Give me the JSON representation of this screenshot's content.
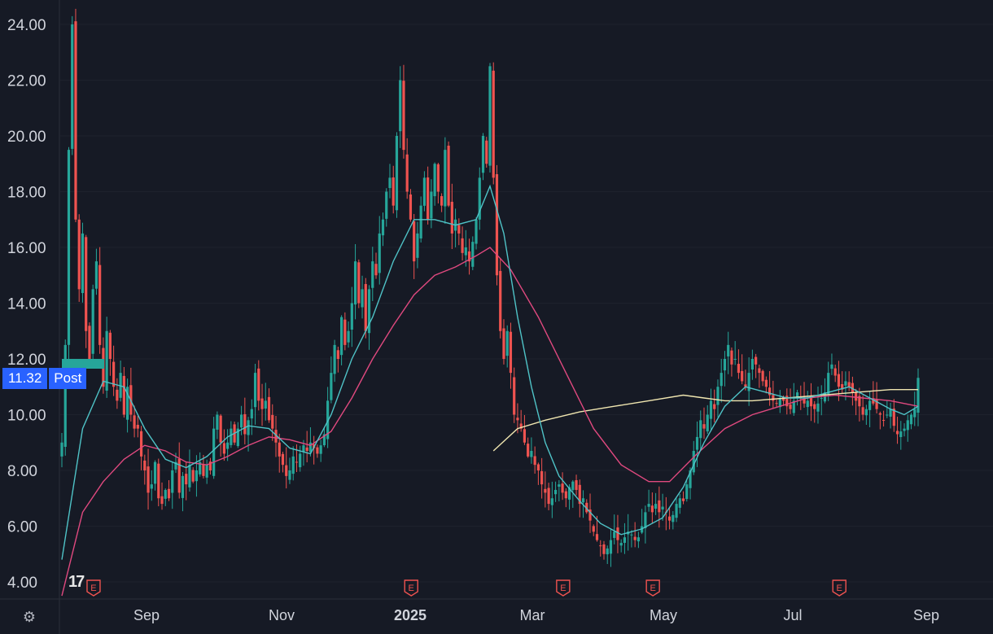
{
  "chart_data": {
    "type": "candlestick",
    "title": "",
    "y_ticks": [
      "24.00",
      "22.00",
      "20.00",
      "18.00",
      "16.00",
      "14.00",
      "12.00",
      "10.00",
      "8.00",
      "6.00",
      "4.00"
    ],
    "x_ticks": [
      {
        "label": "Sep",
        "bold": false
      },
      {
        "label": "Nov",
        "bold": false
      },
      {
        "label": "2025",
        "bold": true
      },
      {
        "label": "Mar",
        "bold": false
      },
      {
        "label": "May",
        "bold": false
      },
      {
        "label": "Jul",
        "bold": false
      },
      {
        "label": "Sep",
        "bold": false
      }
    ],
    "ylim": [
      4,
      24
    ],
    "last_price": "11.32",
    "last_price_label": "Post",
    "earnings_markers": [
      "E",
      "E",
      "E",
      "E",
      "E"
    ],
    "colors": {
      "up": "#26a69a",
      "down": "#ef5350",
      "ma_fast": "#4fc3c7",
      "ma_mid": "#e0497f",
      "ma_slow": "#f0e6b0",
      "background": "#161a25",
      "axis_text": "#d1d4dc",
      "price_tag": "#2962ff"
    },
    "price_path": [
      [
        0,
        9.0
      ],
      [
        1,
        12.5
      ],
      [
        2,
        19.5
      ],
      [
        3,
        24.0
      ],
      [
        4,
        17.0
      ],
      [
        5,
        14.5
      ],
      [
        6,
        16.5
      ],
      [
        7,
        13.0
      ],
      [
        8,
        12.0
      ],
      [
        9,
        14.5
      ],
      [
        10,
        15.5
      ],
      [
        11,
        12.5
      ],
      [
        12,
        11.0
      ],
      [
        13,
        13.0
      ],
      [
        14,
        12.0
      ],
      [
        15,
        11.0
      ],
      [
        16,
        10.5
      ],
      [
        17,
        11.5
      ],
      [
        18,
        10.0
      ],
      [
        19,
        11.0
      ],
      [
        20,
        10.0
      ],
      [
        21,
        9.5
      ],
      [
        22,
        9.5
      ],
      [
        23,
        8.5
      ],
      [
        24,
        8.0
      ],
      [
        25,
        7.2
      ],
      [
        26,
        7.5
      ],
      [
        27,
        8.3
      ],
      [
        28,
        7.0
      ],
      [
        29,
        6.8
      ],
      [
        30,
        7.3
      ],
      [
        31,
        7.0
      ],
      [
        32,
        8.0
      ],
      [
        33,
        8.3
      ],
      [
        34,
        7.2
      ],
      [
        35,
        7.8
      ],
      [
        36,
        7.5
      ],
      [
        37,
        8.2
      ],
      [
        38,
        7.6
      ],
      [
        39,
        8.0
      ],
      [
        40,
        8.3
      ],
      [
        41,
        7.8
      ],
      [
        42,
        8.2
      ],
      [
        43,
        8.0
      ],
      [
        44,
        9.5
      ],
      [
        45,
        10.0
      ],
      [
        46,
        9.0
      ],
      [
        47,
        8.6
      ],
      [
        48,
        9.0
      ],
      [
        49,
        9.5
      ],
      [
        50,
        9.0
      ],
      [
        51,
        9.5
      ],
      [
        52,
        10.0
      ],
      [
        53,
        9.3
      ],
      [
        54,
        9.8
      ],
      [
        55,
        10.2
      ],
      [
        56,
        11.5
      ],
      [
        57,
        10.5
      ],
      [
        58,
        10.2
      ],
      [
        59,
        10.5
      ],
      [
        60,
        9.8
      ],
      [
        61,
        9.5
      ],
      [
        62,
        9.0
      ],
      [
        63,
        8.5
      ],
      [
        64,
        8.2
      ],
      [
        65,
        7.8
      ],
      [
        66,
        8.0
      ],
      [
        67,
        8.5
      ],
      [
        68,
        8.3
      ],
      [
        69,
        8.6
      ],
      [
        70,
        8.9
      ],
      [
        71,
        8.7
      ],
      [
        72,
        9.0
      ],
      [
        73,
        8.8
      ],
      [
        74,
        8.6
      ],
      [
        75,
        8.9
      ],
      [
        76,
        9.3
      ],
      [
        77,
        10.5
      ],
      [
        78,
        11.5
      ],
      [
        79,
        12.5
      ],
      [
        80,
        12.0
      ],
      [
        81,
        13.5
      ],
      [
        82,
        12.5
      ],
      [
        83,
        13.0
      ],
      [
        84,
        14.0
      ],
      [
        85,
        15.5
      ],
      [
        86,
        14.0
      ],
      [
        87,
        14.5
      ],
      [
        88,
        13.0
      ],
      [
        89,
        14.5
      ],
      [
        90,
        15.5
      ],
      [
        91,
        15.0
      ],
      [
        92,
        16.5
      ],
      [
        93,
        17.0
      ],
      [
        94,
        18.0
      ],
      [
        95,
        18.5
      ],
      [
        96,
        17.5
      ],
      [
        97,
        20.0
      ],
      [
        98,
        22.0
      ],
      [
        99,
        19.5
      ],
      [
        100,
        18.0
      ],
      [
        101,
        17.0
      ],
      [
        102,
        15.5
      ],
      [
        103,
        16.5
      ],
      [
        104,
        17.5
      ],
      [
        105,
        18.5
      ],
      [
        106,
        17.0
      ],
      [
        107,
        18.0
      ],
      [
        108,
        19.0
      ],
      [
        109,
        18.0
      ],
      [
        110,
        17.5
      ],
      [
        111,
        19.5
      ],
      [
        112,
        17.5
      ],
      [
        113,
        16.5
      ],
      [
        114,
        17.0
      ],
      [
        115,
        16.5
      ],
      [
        116,
        15.8
      ],
      [
        117,
        16.0
      ],
      [
        118,
        15.5
      ],
      [
        119,
        16.2
      ],
      [
        120,
        17.0
      ],
      [
        121,
        18.5
      ],
      [
        122,
        20.0
      ],
      [
        123,
        19.0
      ],
      [
        124,
        22.5
      ],
      [
        125,
        18.5
      ],
      [
        126,
        15.0
      ],
      [
        127,
        13.0
      ],
      [
        128,
        12.0
      ],
      [
        129,
        13.0
      ],
      [
        130,
        11.5
      ],
      [
        131,
        10.0
      ],
      [
        132,
        9.8
      ],
      [
        133,
        9.5
      ],
      [
        134,
        9.0
      ],
      [
        135,
        8.5
      ],
      [
        136,
        8.7
      ],
      [
        137,
        8.2
      ],
      [
        138,
        8.0
      ],
      [
        139,
        7.5
      ],
      [
        140,
        7.2
      ],
      [
        141,
        6.8
      ],
      [
        142,
        7.0
      ],
      [
        143,
        7.3
      ],
      [
        144,
        7.5
      ],
      [
        145,
        7.2
      ],
      [
        146,
        7.0
      ],
      [
        147,
        7.4
      ],
      [
        148,
        7.6
      ],
      [
        149,
        7.3
      ],
      [
        150,
        6.8
      ],
      [
        151,
        7.0
      ],
      [
        152,
        6.5
      ],
      [
        153,
        6.2
      ],
      [
        154,
        5.8
      ],
      [
        155,
        5.5
      ],
      [
        156,
        5.3
      ],
      [
        157,
        5.0
      ],
      [
        158,
        5.2
      ],
      [
        159,
        5.5
      ],
      [
        160,
        5.8
      ],
      [
        161,
        5.5
      ],
      [
        162,
        5.4
      ],
      [
        163,
        5.6
      ],
      [
        164,
        5.8
      ],
      [
        165,
        5.7
      ],
      [
        166,
        5.5
      ],
      [
        167,
        5.6
      ],
      [
        168,
        6.0
      ],
      [
        169,
        6.5
      ],
      [
        170,
        6.8
      ],
      [
        171,
        6.5
      ],
      [
        172,
        6.8
      ],
      [
        173,
        6.5
      ],
      [
        174,
        6.7
      ],
      [
        175,
        6.5
      ],
      [
        176,
        6.2
      ],
      [
        177,
        6.4
      ],
      [
        178,
        6.8
      ],
      [
        179,
        7.0
      ],
      [
        180,
        6.9
      ],
      [
        181,
        7.5
      ],
      [
        182,
        8.0
      ],
      [
        183,
        8.7
      ],
      [
        184,
        9.2
      ],
      [
        185,
        9.8
      ],
      [
        186,
        9.5
      ],
      [
        187,
        10.0
      ],
      [
        188,
        10.5
      ],
      [
        189,
        10.2
      ],
      [
        190,
        11.0
      ],
      [
        191,
        11.5
      ],
      [
        192,
        12.0
      ],
      [
        193,
        12.5
      ],
      [
        194,
        11.8
      ],
      [
        195,
        12.0
      ],
      [
        196,
        11.5
      ],
      [
        197,
        11.2
      ],
      [
        198,
        11.0
      ],
      [
        199,
        11.5
      ],
      [
        200,
        12.0
      ],
      [
        201,
        11.8
      ],
      [
        202,
        11.5
      ],
      [
        203,
        11.2
      ],
      [
        204,
        11.0
      ],
      [
        205,
        10.7
      ],
      [
        206,
        10.5
      ],
      [
        207,
        10.4
      ],
      [
        208,
        10.6
      ],
      [
        209,
        10.5
      ],
      [
        210,
        10.3
      ],
      [
        211,
        10.2
      ],
      [
        212,
        10.5
      ],
      [
        213,
        10.8
      ],
      [
        214,
        10.6
      ],
      [
        215,
        10.4
      ],
      [
        216,
        10.5
      ],
      [
        217,
        10.3
      ],
      [
        218,
        10.2
      ],
      [
        219,
        10.4
      ],
      [
        220,
        10.6
      ],
      [
        221,
        10.8
      ],
      [
        222,
        11.5
      ],
      [
        223,
        11.8
      ],
      [
        224,
        11.4
      ],
      [
        225,
        11.0
      ],
      [
        226,
        10.9
      ],
      [
        227,
        11.2
      ],
      [
        228,
        11.0
      ],
      [
        229,
        10.8
      ],
      [
        230,
        10.5
      ],
      [
        231,
        10.3
      ],
      [
        232,
        10.0
      ],
      [
        233,
        10.2
      ],
      [
        234,
        10.5
      ],
      [
        235,
        10.4
      ],
      [
        236,
        10.2
      ],
      [
        237,
        10.0
      ],
      [
        238,
        9.8
      ],
      [
        239,
        10.0
      ],
      [
        240,
        10.2
      ],
      [
        241,
        9.6
      ],
      [
        242,
        9.3
      ],
      [
        243,
        9.4
      ],
      [
        244,
        9.5
      ],
      [
        245,
        9.8
      ],
      [
        246,
        10.0
      ],
      [
        247,
        10.2
      ],
      [
        248,
        11.32
      ]
    ],
    "ma_fast": [
      [
        0,
        4.8
      ],
      [
        6,
        9.5
      ],
      [
        12,
        11.2
      ],
      [
        18,
        11.0
      ],
      [
        24,
        9.5
      ],
      [
        30,
        8.4
      ],
      [
        36,
        8.1
      ],
      [
        42,
        8.5
      ],
      [
        48,
        9.2
      ],
      [
        54,
        9.6
      ],
      [
        60,
        9.5
      ],
      [
        66,
        8.8
      ],
      [
        72,
        8.6
      ],
      [
        78,
        10.0
      ],
      [
        84,
        12.0
      ],
      [
        90,
        13.5
      ],
      [
        96,
        15.5
      ],
      [
        102,
        17.0
      ],
      [
        108,
        17.0
      ],
      [
        114,
        16.8
      ],
      [
        120,
        17.0
      ],
      [
        124,
        18.2
      ],
      [
        128,
        16.5
      ],
      [
        132,
        13.5
      ],
      [
        136,
        11.0
      ],
      [
        140,
        9.0
      ],
      [
        144,
        7.8
      ],
      [
        150,
        6.9
      ],
      [
        156,
        6.1
      ],
      [
        162,
        5.7
      ],
      [
        168,
        5.9
      ],
      [
        174,
        6.3
      ],
      [
        180,
        7.4
      ],
      [
        186,
        9.0
      ],
      [
        192,
        10.3
      ],
      [
        198,
        11.0
      ],
      [
        204,
        10.8
      ],
      [
        210,
        10.6
      ],
      [
        216,
        10.6
      ],
      [
        222,
        10.8
      ],
      [
        228,
        11.0
      ],
      [
        234,
        10.6
      ],
      [
        240,
        10.2
      ],
      [
        244,
        10.0
      ],
      [
        248,
        10.3
      ]
    ],
    "ma_mid": [
      [
        0,
        3.5
      ],
      [
        6,
        6.5
      ],
      [
        12,
        7.6
      ],
      [
        18,
        8.4
      ],
      [
        24,
        8.9
      ],
      [
        30,
        8.7
      ],
      [
        36,
        8.3
      ],
      [
        42,
        8.2
      ],
      [
        48,
        8.5
      ],
      [
        54,
        8.9
      ],
      [
        60,
        9.2
      ],
      [
        66,
        9.1
      ],
      [
        72,
        8.9
      ],
      [
        78,
        9.4
      ],
      [
        84,
        10.6
      ],
      [
        90,
        12.0
      ],
      [
        96,
        13.2
      ],
      [
        102,
        14.3
      ],
      [
        108,
        15.0
      ],
      [
        114,
        15.3
      ],
      [
        120,
        15.7
      ],
      [
        124,
        16.0
      ],
      [
        130,
        15.2
      ],
      [
        138,
        13.5
      ],
      [
        146,
        11.5
      ],
      [
        154,
        9.5
      ],
      [
        162,
        8.2
      ],
      [
        170,
        7.6
      ],
      [
        176,
        7.6
      ],
      [
        184,
        8.6
      ],
      [
        192,
        9.5
      ],
      [
        200,
        10.0
      ],
      [
        208,
        10.3
      ],
      [
        216,
        10.6
      ],
      [
        224,
        10.7
      ],
      [
        232,
        10.6
      ],
      [
        240,
        10.5
      ],
      [
        248,
        10.3
      ]
    ],
    "ma_slow": [
      [
        125,
        8.7
      ],
      [
        132,
        9.5
      ],
      [
        140,
        9.8
      ],
      [
        150,
        10.1
      ],
      [
        160,
        10.3
      ],
      [
        170,
        10.5
      ],
      [
        180,
        10.7
      ],
      [
        186,
        10.6
      ],
      [
        192,
        10.5
      ],
      [
        200,
        10.5
      ],
      [
        210,
        10.6
      ],
      [
        220,
        10.7
      ],
      [
        230,
        10.8
      ],
      [
        240,
        10.9
      ],
      [
        248,
        10.9
      ]
    ],
    "earnings_at": [
      4,
      96,
      140,
      166,
      220
    ]
  }
}
